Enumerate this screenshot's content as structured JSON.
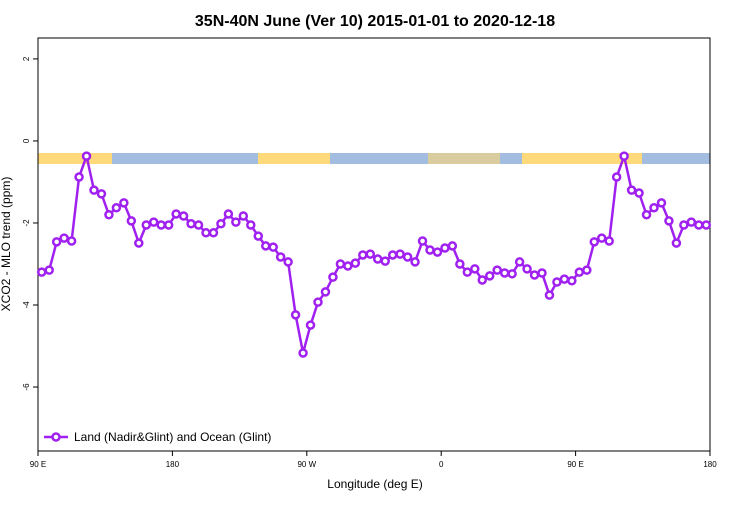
{
  "chart_data": {
    "type": "line",
    "title": "35N-40N June (Ver 10)   2015-01-01 to 2020-12-18",
    "x_label": "Longitude (deg E)",
    "y_label": "XCO2 - MLO trend (ppm)",
    "x": [
      92.5,
      97.5,
      102.5,
      107.5,
      112.5,
      117.5,
      122.5,
      127.5,
      132.5,
      137.5,
      142.5,
      147.5,
      152.5,
      157.5,
      162.5,
      167.5,
      172.5,
      177.5,
      182.5,
      187.5,
      192.5,
      197.5,
      202.5,
      207.5,
      212.5,
      217.5,
      222.5,
      227.5,
      232.5,
      237.5,
      242.5,
      247.5,
      252.5,
      257.5,
      262.5,
      267.5,
      272.5,
      277.5,
      282.5,
      287.5,
      292.5,
      297.5,
      302.5,
      307.5,
      312.5,
      317.5,
      322.5,
      327.5,
      332.5,
      337.5,
      342.5,
      347.5,
      352.5,
      357.5,
      362.5,
      367.5,
      372.5,
      377.5,
      382.5,
      387.5,
      392.5,
      397.5,
      402.5,
      407.5,
      412.5,
      417.5,
      422.5,
      427.5,
      432.5,
      437.5,
      442.5,
      447.5,
      452.5,
      457.5,
      462.5,
      467.5,
      472.5,
      477.5,
      482.5,
      487.5,
      492.5,
      497.5,
      502.5,
      507.5,
      512.5,
      517.5,
      522.5,
      527.5,
      532.5,
      537.5
    ],
    "series": [
      {
        "name": "Land (Nadir&Glint) and Ocean (Glint)",
        "color": "#a020f0",
        "values": [
          -3.2,
          -3.15,
          -2.46,
          -2.37,
          -2.44,
          -0.88,
          -0.37,
          -1.2,
          -1.29,
          -1.8,
          -1.63,
          -1.51,
          -1.95,
          -2.49,
          -2.05,
          -1.98,
          -2.05,
          -2.05,
          -1.78,
          -1.83,
          -2.02,
          -2.05,
          -2.24,
          -2.24,
          -2.02,
          -1.78,
          -1.98,
          -1.83,
          -2.05,
          -2.32,
          -2.56,
          -2.59,
          -2.83,
          -2.95,
          -4.24,
          -5.17,
          -4.49,
          -3.93,
          -3.68,
          -3.32,
          -3.0,
          -3.05,
          -2.98,
          -2.78,
          -2.76,
          -2.88,
          -2.93,
          -2.78,
          -2.76,
          -2.83,
          -2.95,
          -2.44,
          -2.66,
          -2.71,
          -2.61,
          -2.56,
          -3.0,
          -3.2,
          -3.12,
          -3.39,
          -3.29,
          -3.15,
          -3.22,
          -3.24,
          -2.95,
          -3.12,
          -3.27,
          -3.22,
          -3.76,
          -3.44,
          -3.37,
          -3.41,
          -3.2,
          -3.15,
          -2.46,
          -2.37,
          -2.44,
          -0.88,
          -0.37,
          -1.2,
          -1.27,
          -1.8,
          -1.63,
          -1.51,
          -1.95,
          -2.49,
          -2.05,
          -1.98,
          -2.05,
          -2.05
        ]
      }
    ],
    "xlim": [
      90,
      540
    ],
    "xticks": [
      {
        "value": 90,
        "label": "90 E"
      },
      180,
      {
        "value": 270,
        "label": "90 W"
      },
      {
        "value": 360,
        "label": "0"
      },
      {
        "value": 450,
        "label": "90 E"
      },
      {
        "value": 540,
        "label": "180"
      }
    ],
    "ylim": [
      -7.56,
      2.51
    ],
    "yticks": [
      -6,
      -4,
      -2,
      0,
      2
    ],
    "legend": "bottomleft"
  }
}
